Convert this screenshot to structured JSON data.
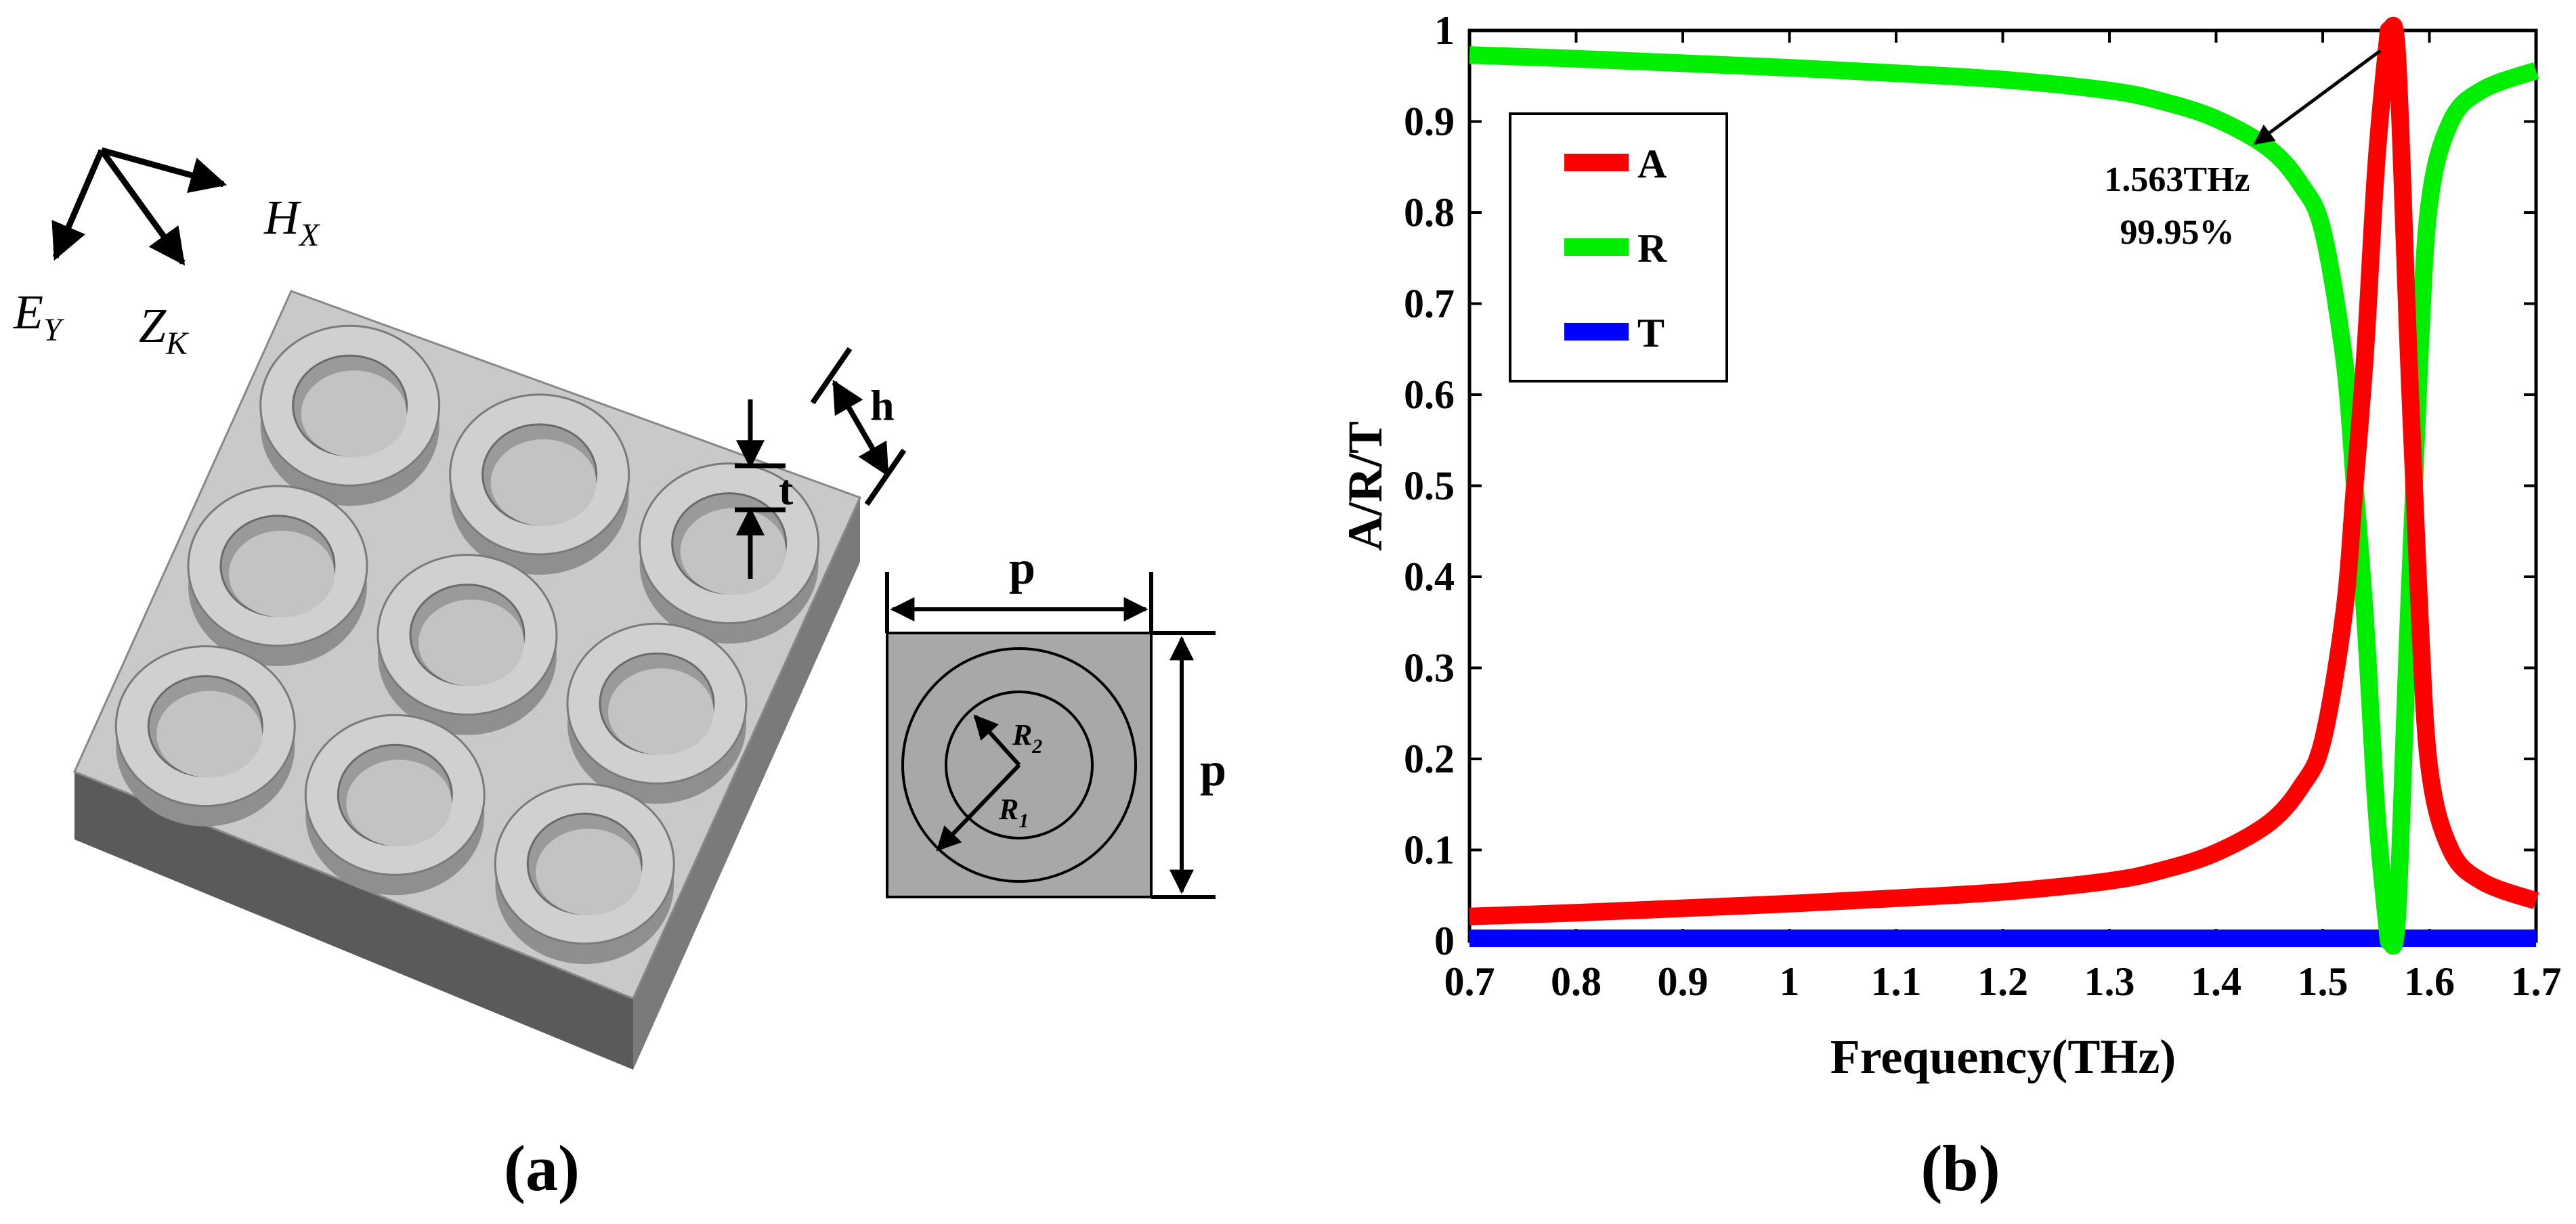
{
  "panel_a": {
    "caption": "(a)",
    "axes": {
      "e_main": "E",
      "e_sub": "Y",
      "z_main": "Z",
      "z_sub": "K",
      "h_main": "H",
      "h_sub": "X"
    },
    "dims": {
      "h": "h",
      "t": "t",
      "p_top": "p",
      "p_side": "p"
    },
    "radii": {
      "r2_main": "R",
      "r2_sub": "2",
      "r1_main": "R",
      "r1_sub": "1"
    },
    "colors": {
      "slab_top": "#c8c8c8",
      "slab_left": "#5e5e5e",
      "slab_right": "#7c7c7c",
      "ring": "#cfcfcf",
      "unit_cell": "#a9a9a9"
    }
  },
  "panel_b": {
    "caption": "(b)",
    "annotation": {
      "line1": "1.563THz",
      "line2": "99.95%"
    }
  },
  "chart_data": {
    "type": "line",
    "xlabel": "Frequency(THz)",
    "ylabel": "A/R/T",
    "xlim": [
      0.7,
      1.7
    ],
    "ylim": [
      0,
      1
    ],
    "x_ticks": [
      "0.7",
      "0.8",
      "0.9",
      "1",
      "1.1",
      "1.2",
      "1.3",
      "1.4",
      "1.5",
      "1.6",
      "1.7"
    ],
    "y_ticks": [
      "0",
      "0.1",
      "0.2",
      "0.3",
      "0.4",
      "0.5",
      "0.6",
      "0.7",
      "0.8",
      "0.9",
      "1"
    ],
    "grid": false,
    "legend_position": "top-left",
    "x": [
      0.7,
      0.8,
      0.9,
      1.0,
      1.1,
      1.2,
      1.3,
      1.35,
      1.4,
      1.45,
      1.48,
      1.5,
      1.52,
      1.53,
      1.54,
      1.55,
      1.56,
      1.563,
      1.57,
      1.58,
      1.59,
      1.6,
      1.62,
      1.65,
      1.7
    ],
    "series": [
      {
        "name": "A",
        "color": "#ff0000",
        "values": [
          0.027,
          0.031,
          0.036,
          0.041,
          0.047,
          0.054,
          0.066,
          0.078,
          0.097,
          0.13,
          0.17,
          0.22,
          0.36,
          0.5,
          0.65,
          0.85,
          0.98,
          0.9995,
          0.97,
          0.66,
          0.38,
          0.19,
          0.1,
          0.065,
          0.044
        ]
      },
      {
        "name": "R",
        "color": "#00ee00",
        "values": [
          0.973,
          0.969,
          0.964,
          0.959,
          0.953,
          0.946,
          0.934,
          0.922,
          0.903,
          0.87,
          0.83,
          0.78,
          0.64,
          0.5,
          0.35,
          0.15,
          0.02,
          0.0005,
          0.03,
          0.34,
          0.62,
          0.81,
          0.9,
          0.935,
          0.956
        ]
      },
      {
        "name": "T",
        "color": "#0000ff",
        "values": [
          0.003,
          0.003,
          0.003,
          0.003,
          0.003,
          0.003,
          0.003,
          0.003,
          0.003,
          0.003,
          0.003,
          0.003,
          0.003,
          0.003,
          0.003,
          0.003,
          0.003,
          0.003,
          0.003,
          0.003,
          0.003,
          0.003,
          0.003,
          0.003,
          0.003
        ]
      }
    ]
  }
}
